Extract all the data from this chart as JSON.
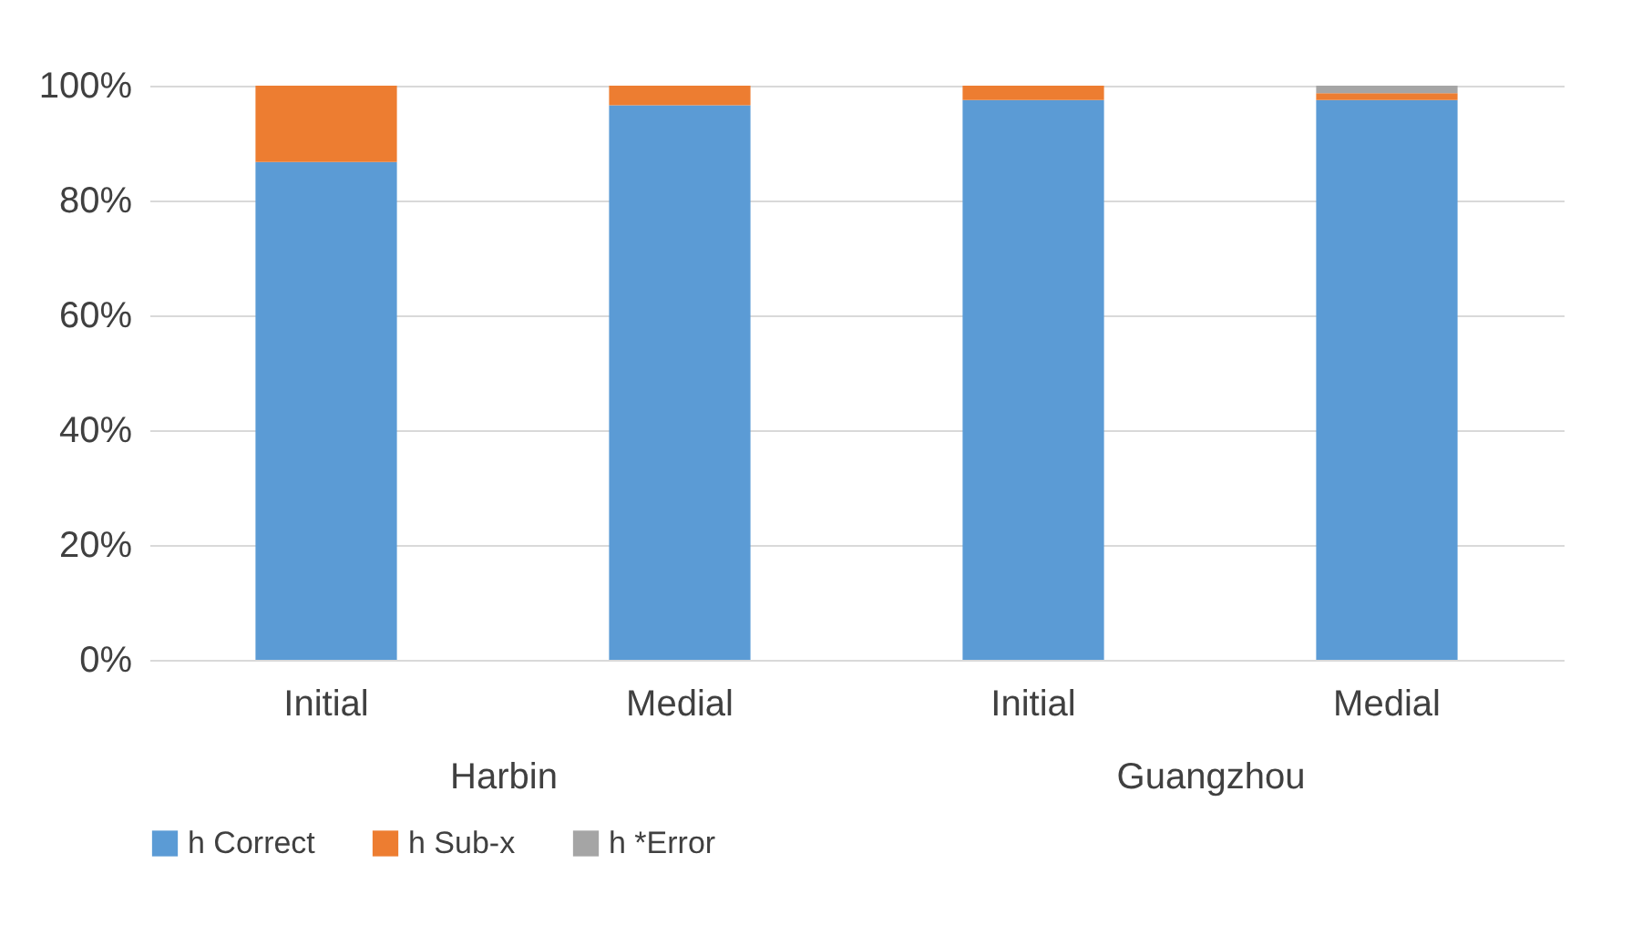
{
  "chart_data": {
    "type": "bar",
    "stacked": true,
    "categories": [
      "Initial",
      "Medial",
      "Initial",
      "Medial"
    ],
    "series": [
      {
        "name": "h Correct",
        "color": "#5b9bd5",
        "values": [
          86.7,
          96.6,
          97.5,
          97.5
        ]
      },
      {
        "name": "h Sub-x",
        "color": "#ed7d31",
        "values": [
          13.3,
          3.4,
          2.5,
          1.2
        ]
      },
      {
        "name": "h *Error",
        "color": "#a5a5a5",
        "values": [
          0,
          0,
          0,
          1.3
        ]
      }
    ],
    "ylim": [
      0,
      100
    ],
    "yticks": [
      {
        "value": 0,
        "label": "0%"
      },
      {
        "value": 20,
        "label": "20%"
      },
      {
        "value": 40,
        "label": "40%"
      },
      {
        "value": 60,
        "label": "60%"
      },
      {
        "value": 80,
        "label": "80%"
      },
      {
        "value": 100,
        "label": "100%"
      }
    ],
    "grid": "y",
    "legend": "bottom",
    "annotations": [
      "Harbin",
      "Guangzhou"
    ]
  }
}
